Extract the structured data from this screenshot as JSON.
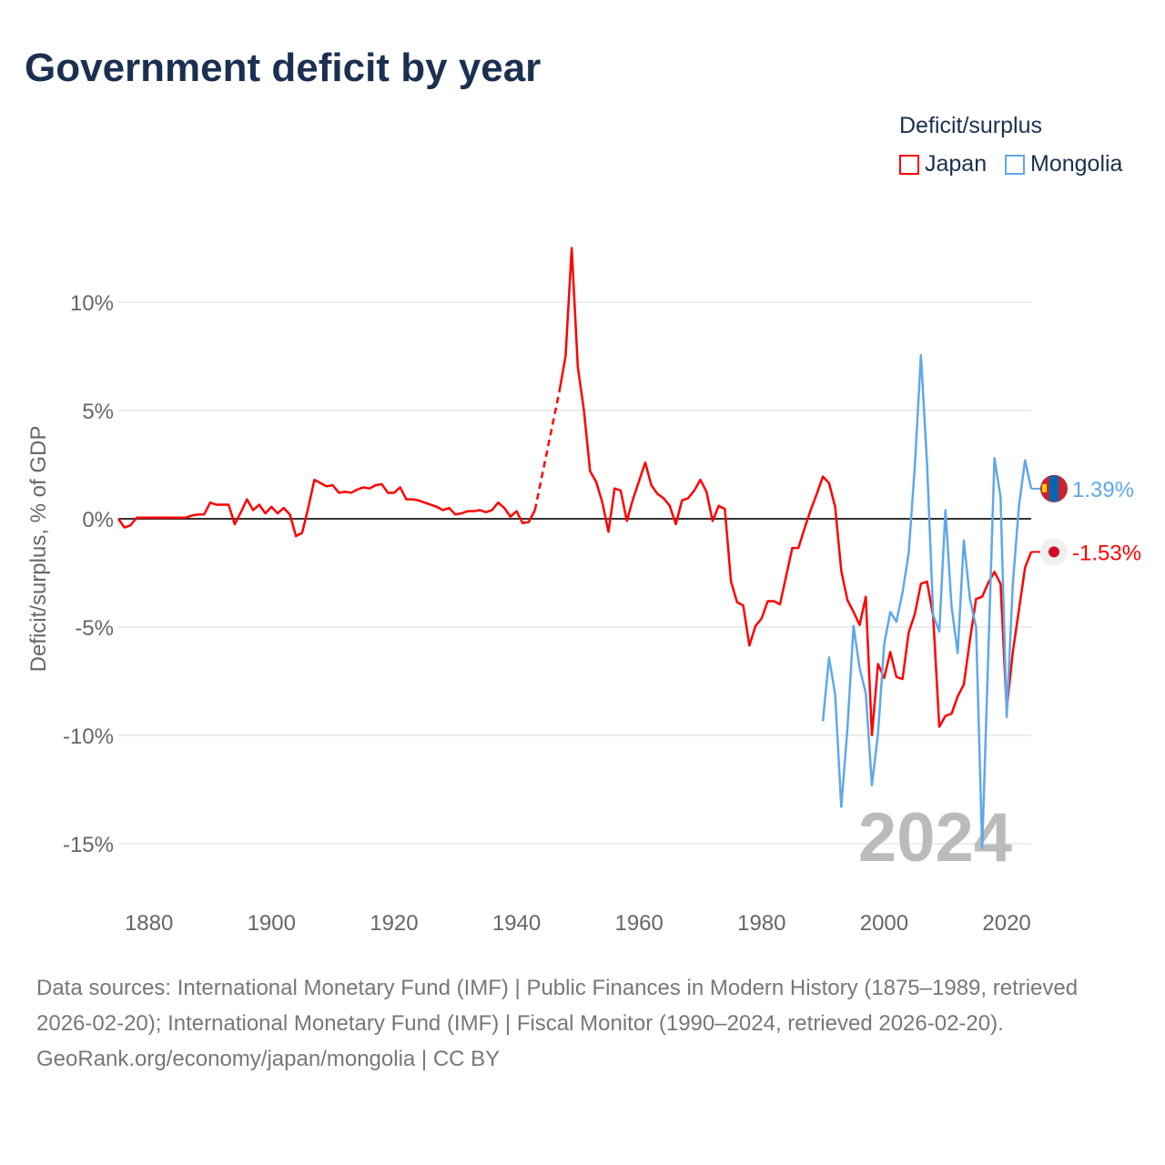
{
  "title": "Government deficit by year",
  "legend": {
    "title": "Deficit/surplus",
    "items": [
      {
        "name": "Japan",
        "color": "#ff0000"
      },
      {
        "name": "Mongolia",
        "color": "#5ea8ea"
      }
    ]
  },
  "chart_data": {
    "type": "line",
    "title": "Government deficit by year",
    "ylabel": "Deficit/surplus, % of GDP",
    "xlabel": "",
    "xlim": [
      1875,
      2024
    ],
    "ylim": [
      -17,
      13
    ],
    "yticks": [
      10,
      5,
      0,
      -5,
      -10,
      -15
    ],
    "ytick_labels": [
      "10%",
      "5%",
      "0%",
      "-5%",
      "-10%",
      "-15%"
    ],
    "xticks": [
      1880,
      1900,
      1920,
      1940,
      1960,
      1980,
      2000,
      2020
    ],
    "xtick_labels": [
      "1880",
      "1900",
      "1920",
      "1940",
      "1960",
      "1980",
      "2000",
      "2020"
    ],
    "year_watermark": "2024",
    "grid": true,
    "legend_position": "top-right",
    "series": [
      {
        "name": "Japan",
        "color": "#ff0000",
        "start_year": 1875,
        "end_label": "-1.53%",
        "values": [
          0,
          -0.4,
          -0.3,
          0.05,
          0.05,
          0.05,
          0.05,
          0.05,
          0.05,
          0.05,
          0.05,
          0.05,
          0.15,
          0.2,
          0.2,
          0.75,
          0.65,
          0.65,
          0.65,
          -0.25,
          0.3,
          0.9,
          0.4,
          0.65,
          0.25,
          0.55,
          0.25,
          0.5,
          0.2,
          -0.8,
          -0.65,
          0.5,
          1.8,
          1.65,
          1.5,
          1.55,
          1.2,
          1.25,
          1.2,
          1.35,
          1.45,
          1.4,
          1.55,
          1.6,
          1.2,
          1.2,
          1.45,
          0.9,
          0.9,
          0.85,
          0.75,
          0.65,
          0.55,
          0.4,
          0.5,
          0.2,
          0.25,
          0.35,
          0.35,
          0.4,
          0.3,
          0.4,
          0.75,
          0.5,
          0.1,
          0.35,
          -0.2,
          -0.15,
          0.4,
          null,
          null,
          null,
          5.9,
          7.5,
          12.5,
          7.0,
          5.0,
          2.2,
          1.7,
          0.75,
          -0.6,
          1.4,
          1.3,
          -0.1,
          0.9,
          1.75,
          2.6,
          1.55,
          1.15,
          0.95,
          0.6,
          -0.25,
          0.85,
          0.95,
          1.3,
          1.8,
          1.25,
          -0.1,
          0.6,
          0.45,
          -2.9,
          -3.85,
          -4.0,
          -5.85,
          -4.95,
          -4.6,
          -3.8,
          -3.8,
          -3.95,
          -2.65,
          -1.35,
          -1.35,
          -0.45,
          0.4,
          1.15,
          1.95,
          1.65,
          0.55,
          -2.4,
          -3.75,
          -4.3,
          -4.9,
          -3.6,
          -9.99,
          -6.7,
          -7.35,
          -6.15,
          -7.3,
          -7.4,
          -5.25,
          -4.4,
          -3.0,
          -2.9,
          -4.5,
          -9.6,
          -9.1,
          -9.0,
          -8.2,
          -7.65,
          -5.6,
          -3.7,
          -3.6,
          -2.95,
          -2.45,
          -3.0,
          -8.8,
          -6.15,
          -4.2,
          -2.25,
          -1.53
        ]
      },
      {
        "name": "Mongolia",
        "color": "#5ea8ea",
        "start_year": 1990,
        "end_label": "1.39%",
        "values": [
          -9.35,
          -6.4,
          -8.1,
          -13.3,
          -9.7,
          -4.95,
          -6.9,
          -8.05,
          -12.3,
          -9.9,
          -5.8,
          -4.3,
          -4.75,
          -3.4,
          -1.6,
          2.4,
          7.55,
          2.55,
          -4.45,
          -5.2,
          0.4,
          -4.05,
          -6.2,
          -1.0,
          -3.7,
          -5.0,
          -15.2,
          -6.2,
          2.8,
          1.0,
          -9.15,
          -3.0,
          0.6,
          2.7,
          1.39
        ]
      }
    ]
  },
  "footer": {
    "sources": "Data sources: International Monetary Fund (IMF) | Public Finances in Modern History (1875–1989, retrieved 2026-02-20); International Monetary Fund (IMF) | Fiscal Monitor (1990–2024, retrieved 2026-02-20).",
    "credit": "GeoRank.org/economy/japan/mongolia | CC BY"
  }
}
